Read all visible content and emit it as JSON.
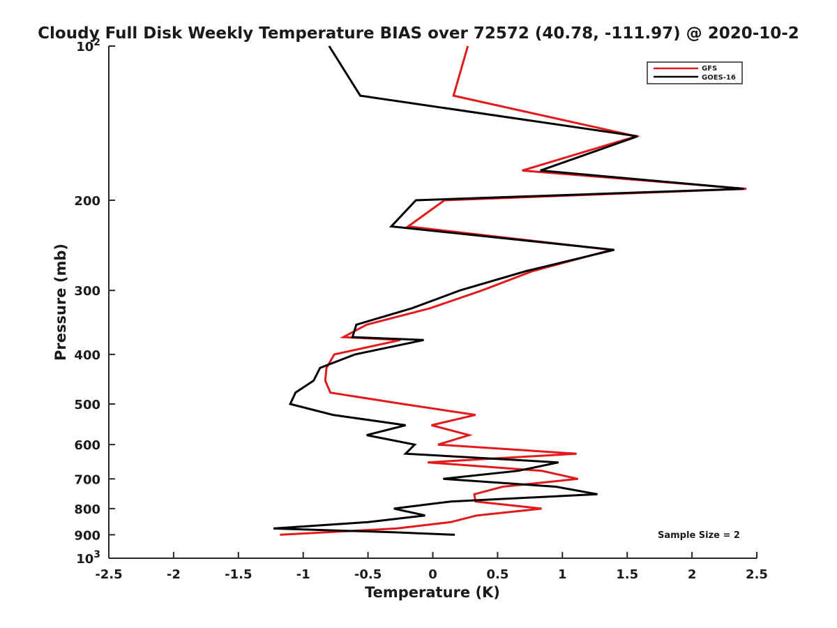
{
  "chart_data": {
    "type": "line",
    "title": "Cloudy Full Disk Weekly Temperature BIAS over 72572 (40.78, -111.97) @ 2020-10-2",
    "xlabel": "Temperature (K)",
    "ylabel": "Pressure (mb)",
    "xlim": [
      -2.5,
      2.5
    ],
    "ylim": [
      1000,
      100
    ],
    "y_scale": "log",
    "y_reversed": true,
    "grid": false,
    "legend_position": "top-right",
    "annotation": "Sample Size = 2",
    "x_ticks": [
      -2.5,
      -2,
      -1.5,
      -1,
      -0.5,
      0,
      0.5,
      1,
      1.5,
      2,
      2.5
    ],
    "x_tick_labels": [
      "-2.5",
      "-2",
      "-1.5",
      "-1",
      "-0.5",
      "0",
      "0.5",
      "1",
      "1.5",
      "2",
      "2.5"
    ],
    "y_ticks": [
      {
        "value": 100,
        "base": "10",
        "exp": "2"
      },
      {
        "value": 200,
        "label": "200"
      },
      {
        "value": 300,
        "label": "300"
      },
      {
        "value": 400,
        "label": "400"
      },
      {
        "value": 500,
        "label": "500"
      },
      {
        "value": 600,
        "label": "600"
      },
      {
        "value": 700,
        "label": "700"
      },
      {
        "value": 800,
        "label": "800"
      },
      {
        "value": 900,
        "label": "900"
      },
      {
        "value": 1000,
        "base": "10",
        "exp": "3"
      }
    ],
    "series": [
      {
        "name": "GFS",
        "color": "#e31a1c",
        "points": [
          [
            0.27,
            100
          ],
          [
            0.16,
            125
          ],
          [
            1.57,
            150
          ],
          [
            0.69,
            175
          ],
          [
            2.42,
            190
          ],
          [
            0.09,
            200
          ],
          [
            -0.19,
            225
          ],
          [
            1.38,
            250
          ],
          [
            0.77,
            275
          ],
          [
            0.38,
            300
          ],
          [
            -0.02,
            325
          ],
          [
            -0.51,
            350
          ],
          [
            -0.69,
            370
          ],
          [
            -0.25,
            375
          ],
          [
            -0.76,
            400
          ],
          [
            -0.82,
            425
          ],
          [
            -0.83,
            450
          ],
          [
            -0.79,
            475
          ],
          [
            -0.23,
            500
          ],
          [
            0.33,
            525
          ],
          [
            -0.01,
            550
          ],
          [
            0.28,
            575
          ],
          [
            0.04,
            600
          ],
          [
            1.11,
            625
          ],
          [
            -0.04,
            650
          ],
          [
            0.84,
            675
          ],
          [
            1.12,
            700
          ],
          [
            0.54,
            725
          ],
          [
            0.32,
            750
          ],
          [
            0.33,
            775
          ],
          [
            0.84,
            800
          ],
          [
            0.34,
            825
          ],
          [
            0.14,
            850
          ],
          [
            -0.28,
            875
          ],
          [
            -1.18,
            900
          ]
        ]
      },
      {
        "name": "GOES-16",
        "color": "#000000",
        "points": [
          [
            -0.8,
            100
          ],
          [
            -0.56,
            125
          ],
          [
            1.58,
            150
          ],
          [
            0.83,
            175
          ],
          [
            2.4,
            190
          ],
          [
            -0.13,
            200
          ],
          [
            -0.32,
            225
          ],
          [
            1.4,
            250
          ],
          [
            0.72,
            275
          ],
          [
            0.21,
            300
          ],
          [
            -0.16,
            325
          ],
          [
            -0.59,
            350
          ],
          [
            -0.62,
            370
          ],
          [
            -0.07,
            375
          ],
          [
            -0.6,
            400
          ],
          [
            -0.87,
            425
          ],
          [
            -0.92,
            450
          ],
          [
            -1.06,
            475
          ],
          [
            -1.1,
            500
          ],
          [
            -0.77,
            525
          ],
          [
            -0.21,
            550
          ],
          [
            -0.51,
            575
          ],
          [
            -0.14,
            600
          ],
          [
            -0.21,
            625
          ],
          [
            0.97,
            650
          ],
          [
            0.66,
            675
          ],
          [
            0.08,
            700
          ],
          [
            0.95,
            725
          ],
          [
            1.27,
            750
          ],
          [
            0.14,
            775
          ],
          [
            -0.3,
            800
          ],
          [
            -0.06,
            825
          ],
          [
            -0.5,
            850
          ],
          [
            -1.23,
            875
          ],
          [
            -0.29,
            890
          ],
          [
            0.17,
            900
          ]
        ]
      }
    ]
  }
}
